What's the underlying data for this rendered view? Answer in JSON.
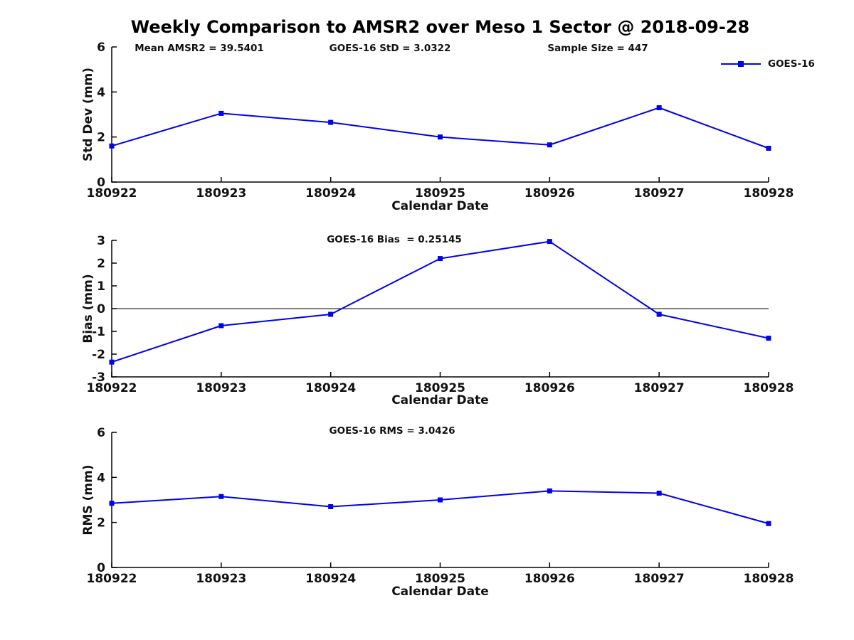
{
  "figure": {
    "title": "Weekly Comparison to AMSR2 over Meso 1 Sector @ 2018-09-28",
    "background_color": "#ffffff",
    "text_color": "#111111"
  },
  "chart_data": [
    {
      "type": "line",
      "title": "",
      "xlabel": "Calendar Date",
      "ylabel": "Std Dev (mm)",
      "categories": [
        "180922",
        "180923",
        "180924",
        "180925",
        "180926",
        "180927",
        "180928"
      ],
      "series": [
        {
          "name": "GOES-16",
          "marker": "square",
          "values": [
            1.6,
            3.05,
            2.65,
            2.0,
            1.65,
            3.3,
            1.5
          ]
        }
      ],
      "ylim": [
        0,
        6
      ],
      "yticks": [
        0,
        2,
        4,
        6
      ],
      "grid": false,
      "box": false,
      "zero_line": false,
      "line_color": "#0000EE",
      "annotations": [
        "Mean AMSR2 = 39.5401",
        "GOES-16 StD = 3.0322",
        "Sample Size = 447"
      ],
      "legend": {
        "label": "GOES-16",
        "position": "top-right"
      }
    },
    {
      "type": "line",
      "title": "",
      "xlabel": "Calendar Date",
      "ylabel": "Bias (mm)",
      "categories": [
        "180922",
        "180923",
        "180924",
        "180925",
        "180926",
        "180927",
        "180928"
      ],
      "series": [
        {
          "name": "GOES-16",
          "marker": "square",
          "values": [
            -2.35,
            -0.75,
            -0.25,
            2.2,
            2.95,
            -0.25,
            -1.3
          ]
        }
      ],
      "ylim": [
        -3,
        3
      ],
      "yticks": [
        -3,
        -2,
        -1,
        0,
        1,
        2,
        3
      ],
      "grid": false,
      "box": false,
      "zero_line": true,
      "line_color": "#0000EE",
      "annotations": [
        "GOES-16 Bias  = 0.25145"
      ]
    },
    {
      "type": "line",
      "title": "",
      "xlabel": "Calendar Date",
      "ylabel": "RMS (mm)",
      "categories": [
        "180922",
        "180923",
        "180924",
        "180925",
        "180926",
        "180927",
        "180928"
      ],
      "series": [
        {
          "name": "GOES-16",
          "marker": "square",
          "values": [
            2.85,
            3.15,
            2.7,
            3.0,
            3.4,
            3.3,
            1.95
          ]
        }
      ],
      "ylim": [
        0,
        6
      ],
      "yticks": [
        0,
        2,
        4,
        6
      ],
      "grid": false,
      "box": false,
      "zero_line": false,
      "line_color": "#0000EE",
      "annotations": [
        "GOES-16 RMS = 3.0426"
      ]
    }
  ]
}
